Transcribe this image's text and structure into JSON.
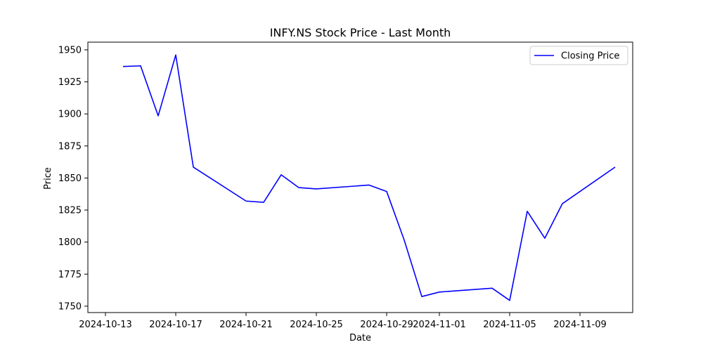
{
  "chart_data": {
    "type": "line",
    "title": "INFY.NS Stock Price - Last Month",
    "xlabel": "Date",
    "ylabel": "Price",
    "xlim": [
      "2024-10-12",
      "2024-11-12"
    ],
    "ylim": [
      1745,
      1956
    ],
    "x_ticks": [
      "2024-10-13",
      "2024-10-17",
      "2024-10-21",
      "2024-10-25",
      "2024-10-29",
      "2024-11-01",
      "2024-11-05",
      "2024-11-09"
    ],
    "y_ticks": [
      1750,
      1775,
      1800,
      1825,
      1850,
      1875,
      1900,
      1925,
      1950
    ],
    "grid": false,
    "legend_position": "upper right",
    "series": [
      {
        "name": "Closing Price",
        "color": "#0000ff",
        "x": [
          "2024-10-14",
          "2024-10-15",
          "2024-10-16",
          "2024-10-17",
          "2024-10-18",
          "2024-10-21",
          "2024-10-22",
          "2024-10-23",
          "2024-10-24",
          "2024-10-25",
          "2024-10-28",
          "2024-10-29",
          "2024-10-30",
          "2024-10-31",
          "2024-11-01",
          "2024-11-04",
          "2024-11-05",
          "2024-11-06",
          "2024-11-07",
          "2024-11-08",
          "2024-11-11"
        ],
        "y": [
          1937.0,
          1937.5,
          1898.5,
          1946.0,
          1858.5,
          1832.0,
          1831.0,
          1852.5,
          1842.5,
          1841.5,
          1844.5,
          1839.5,
          1801.5,
          1757.5,
          1761.0,
          1764.0,
          1754.5,
          1824.0,
          1803.0,
          1830.0,
          1858.5
        ]
      }
    ]
  }
}
